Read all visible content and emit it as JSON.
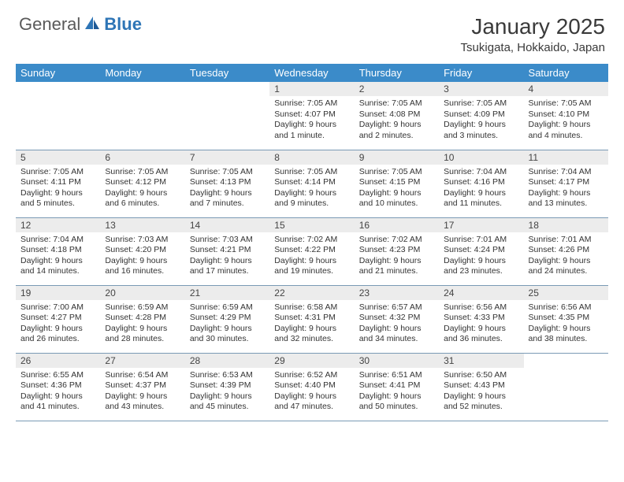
{
  "brand": {
    "part1": "General",
    "part2": "Blue"
  },
  "title": "January 2025",
  "location": "Tsukigata, Hokkaido, Japan",
  "colors": {
    "header_bg": "#3b8bc9",
    "header_text": "#ffffff",
    "daynum_bg": "#ececec",
    "border": "#7a9ab5",
    "brand_gray": "#5a5a5a",
    "brand_blue": "#2e75b6"
  },
  "day_headers": [
    "Sunday",
    "Monday",
    "Tuesday",
    "Wednesday",
    "Thursday",
    "Friday",
    "Saturday"
  ],
  "weeks": [
    [
      null,
      null,
      null,
      {
        "n": "1",
        "sr": "7:05 AM",
        "ss": "4:07 PM",
        "dl": "9 hours and 1 minute."
      },
      {
        "n": "2",
        "sr": "7:05 AM",
        "ss": "4:08 PM",
        "dl": "9 hours and 2 minutes."
      },
      {
        "n": "3",
        "sr": "7:05 AM",
        "ss": "4:09 PM",
        "dl": "9 hours and 3 minutes."
      },
      {
        "n": "4",
        "sr": "7:05 AM",
        "ss": "4:10 PM",
        "dl": "9 hours and 4 minutes."
      }
    ],
    [
      {
        "n": "5",
        "sr": "7:05 AM",
        "ss": "4:11 PM",
        "dl": "9 hours and 5 minutes."
      },
      {
        "n": "6",
        "sr": "7:05 AM",
        "ss": "4:12 PM",
        "dl": "9 hours and 6 minutes."
      },
      {
        "n": "7",
        "sr": "7:05 AM",
        "ss": "4:13 PM",
        "dl": "9 hours and 7 minutes."
      },
      {
        "n": "8",
        "sr": "7:05 AM",
        "ss": "4:14 PM",
        "dl": "9 hours and 9 minutes."
      },
      {
        "n": "9",
        "sr": "7:05 AM",
        "ss": "4:15 PM",
        "dl": "9 hours and 10 minutes."
      },
      {
        "n": "10",
        "sr": "7:04 AM",
        "ss": "4:16 PM",
        "dl": "9 hours and 11 minutes."
      },
      {
        "n": "11",
        "sr": "7:04 AM",
        "ss": "4:17 PM",
        "dl": "9 hours and 13 minutes."
      }
    ],
    [
      {
        "n": "12",
        "sr": "7:04 AM",
        "ss": "4:18 PM",
        "dl": "9 hours and 14 minutes."
      },
      {
        "n": "13",
        "sr": "7:03 AM",
        "ss": "4:20 PM",
        "dl": "9 hours and 16 minutes."
      },
      {
        "n": "14",
        "sr": "7:03 AM",
        "ss": "4:21 PM",
        "dl": "9 hours and 17 minutes."
      },
      {
        "n": "15",
        "sr": "7:02 AM",
        "ss": "4:22 PM",
        "dl": "9 hours and 19 minutes."
      },
      {
        "n": "16",
        "sr": "7:02 AM",
        "ss": "4:23 PM",
        "dl": "9 hours and 21 minutes."
      },
      {
        "n": "17",
        "sr": "7:01 AM",
        "ss": "4:24 PM",
        "dl": "9 hours and 23 minutes."
      },
      {
        "n": "18",
        "sr": "7:01 AM",
        "ss": "4:26 PM",
        "dl": "9 hours and 24 minutes."
      }
    ],
    [
      {
        "n": "19",
        "sr": "7:00 AM",
        "ss": "4:27 PM",
        "dl": "9 hours and 26 minutes."
      },
      {
        "n": "20",
        "sr": "6:59 AM",
        "ss": "4:28 PM",
        "dl": "9 hours and 28 minutes."
      },
      {
        "n": "21",
        "sr": "6:59 AM",
        "ss": "4:29 PM",
        "dl": "9 hours and 30 minutes."
      },
      {
        "n": "22",
        "sr": "6:58 AM",
        "ss": "4:31 PM",
        "dl": "9 hours and 32 minutes."
      },
      {
        "n": "23",
        "sr": "6:57 AM",
        "ss": "4:32 PM",
        "dl": "9 hours and 34 minutes."
      },
      {
        "n": "24",
        "sr": "6:56 AM",
        "ss": "4:33 PM",
        "dl": "9 hours and 36 minutes."
      },
      {
        "n": "25",
        "sr": "6:56 AM",
        "ss": "4:35 PM",
        "dl": "9 hours and 38 minutes."
      }
    ],
    [
      {
        "n": "26",
        "sr": "6:55 AM",
        "ss": "4:36 PM",
        "dl": "9 hours and 41 minutes."
      },
      {
        "n": "27",
        "sr": "6:54 AM",
        "ss": "4:37 PM",
        "dl": "9 hours and 43 minutes."
      },
      {
        "n": "28",
        "sr": "6:53 AM",
        "ss": "4:39 PM",
        "dl": "9 hours and 45 minutes."
      },
      {
        "n": "29",
        "sr": "6:52 AM",
        "ss": "4:40 PM",
        "dl": "9 hours and 47 minutes."
      },
      {
        "n": "30",
        "sr": "6:51 AM",
        "ss": "4:41 PM",
        "dl": "9 hours and 50 minutes."
      },
      {
        "n": "31",
        "sr": "6:50 AM",
        "ss": "4:43 PM",
        "dl": "9 hours and 52 minutes."
      },
      null
    ]
  ],
  "labels": {
    "sunrise": "Sunrise:",
    "sunset": "Sunset:",
    "daylight": "Daylight:"
  }
}
